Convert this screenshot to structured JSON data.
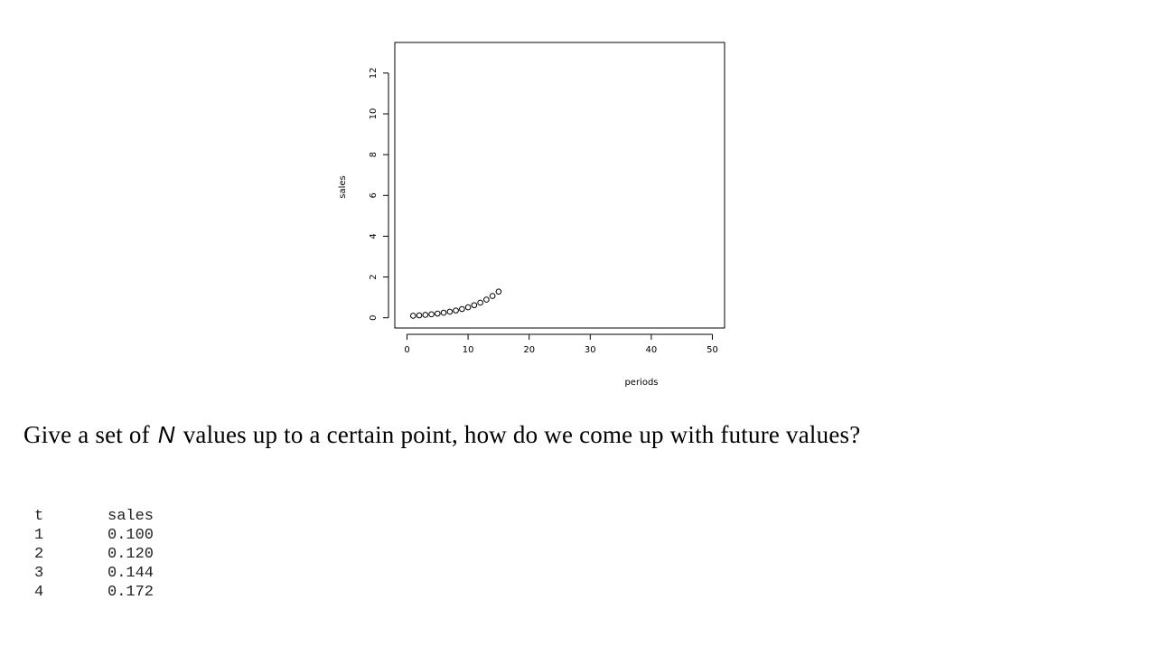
{
  "chart_data": {
    "type": "scatter",
    "xlabel": "periods",
    "ylabel": "sales",
    "xlim": [
      -2,
      52
    ],
    "ylim": [
      -0.5,
      13.5
    ],
    "xticks": [
      0,
      10,
      20,
      30,
      40,
      50
    ],
    "yticks": [
      0,
      2,
      4,
      6,
      8,
      10,
      12
    ],
    "grid": false,
    "marker": "open-circle",
    "x": [
      1,
      2,
      3,
      4,
      5,
      6,
      7,
      8,
      9,
      10,
      11,
      12,
      13,
      14,
      15
    ],
    "y": [
      0.1,
      0.12,
      0.144,
      0.172,
      0.207,
      0.249,
      0.299,
      0.358,
      0.43,
      0.516,
      0.619,
      0.743,
      0.892,
      1.07,
      1.284
    ]
  },
  "question": {
    "before": "Give a set of",
    "variable": "N",
    "after": "values up to a certain point, how do we come up with future values?"
  },
  "table": {
    "headers": [
      "t",
      "sales"
    ],
    "rows": [
      [
        "1",
        "0.100"
      ],
      [
        "2",
        "0.120"
      ],
      [
        "3",
        "0.144"
      ],
      [
        "4",
        "0.172"
      ]
    ]
  }
}
